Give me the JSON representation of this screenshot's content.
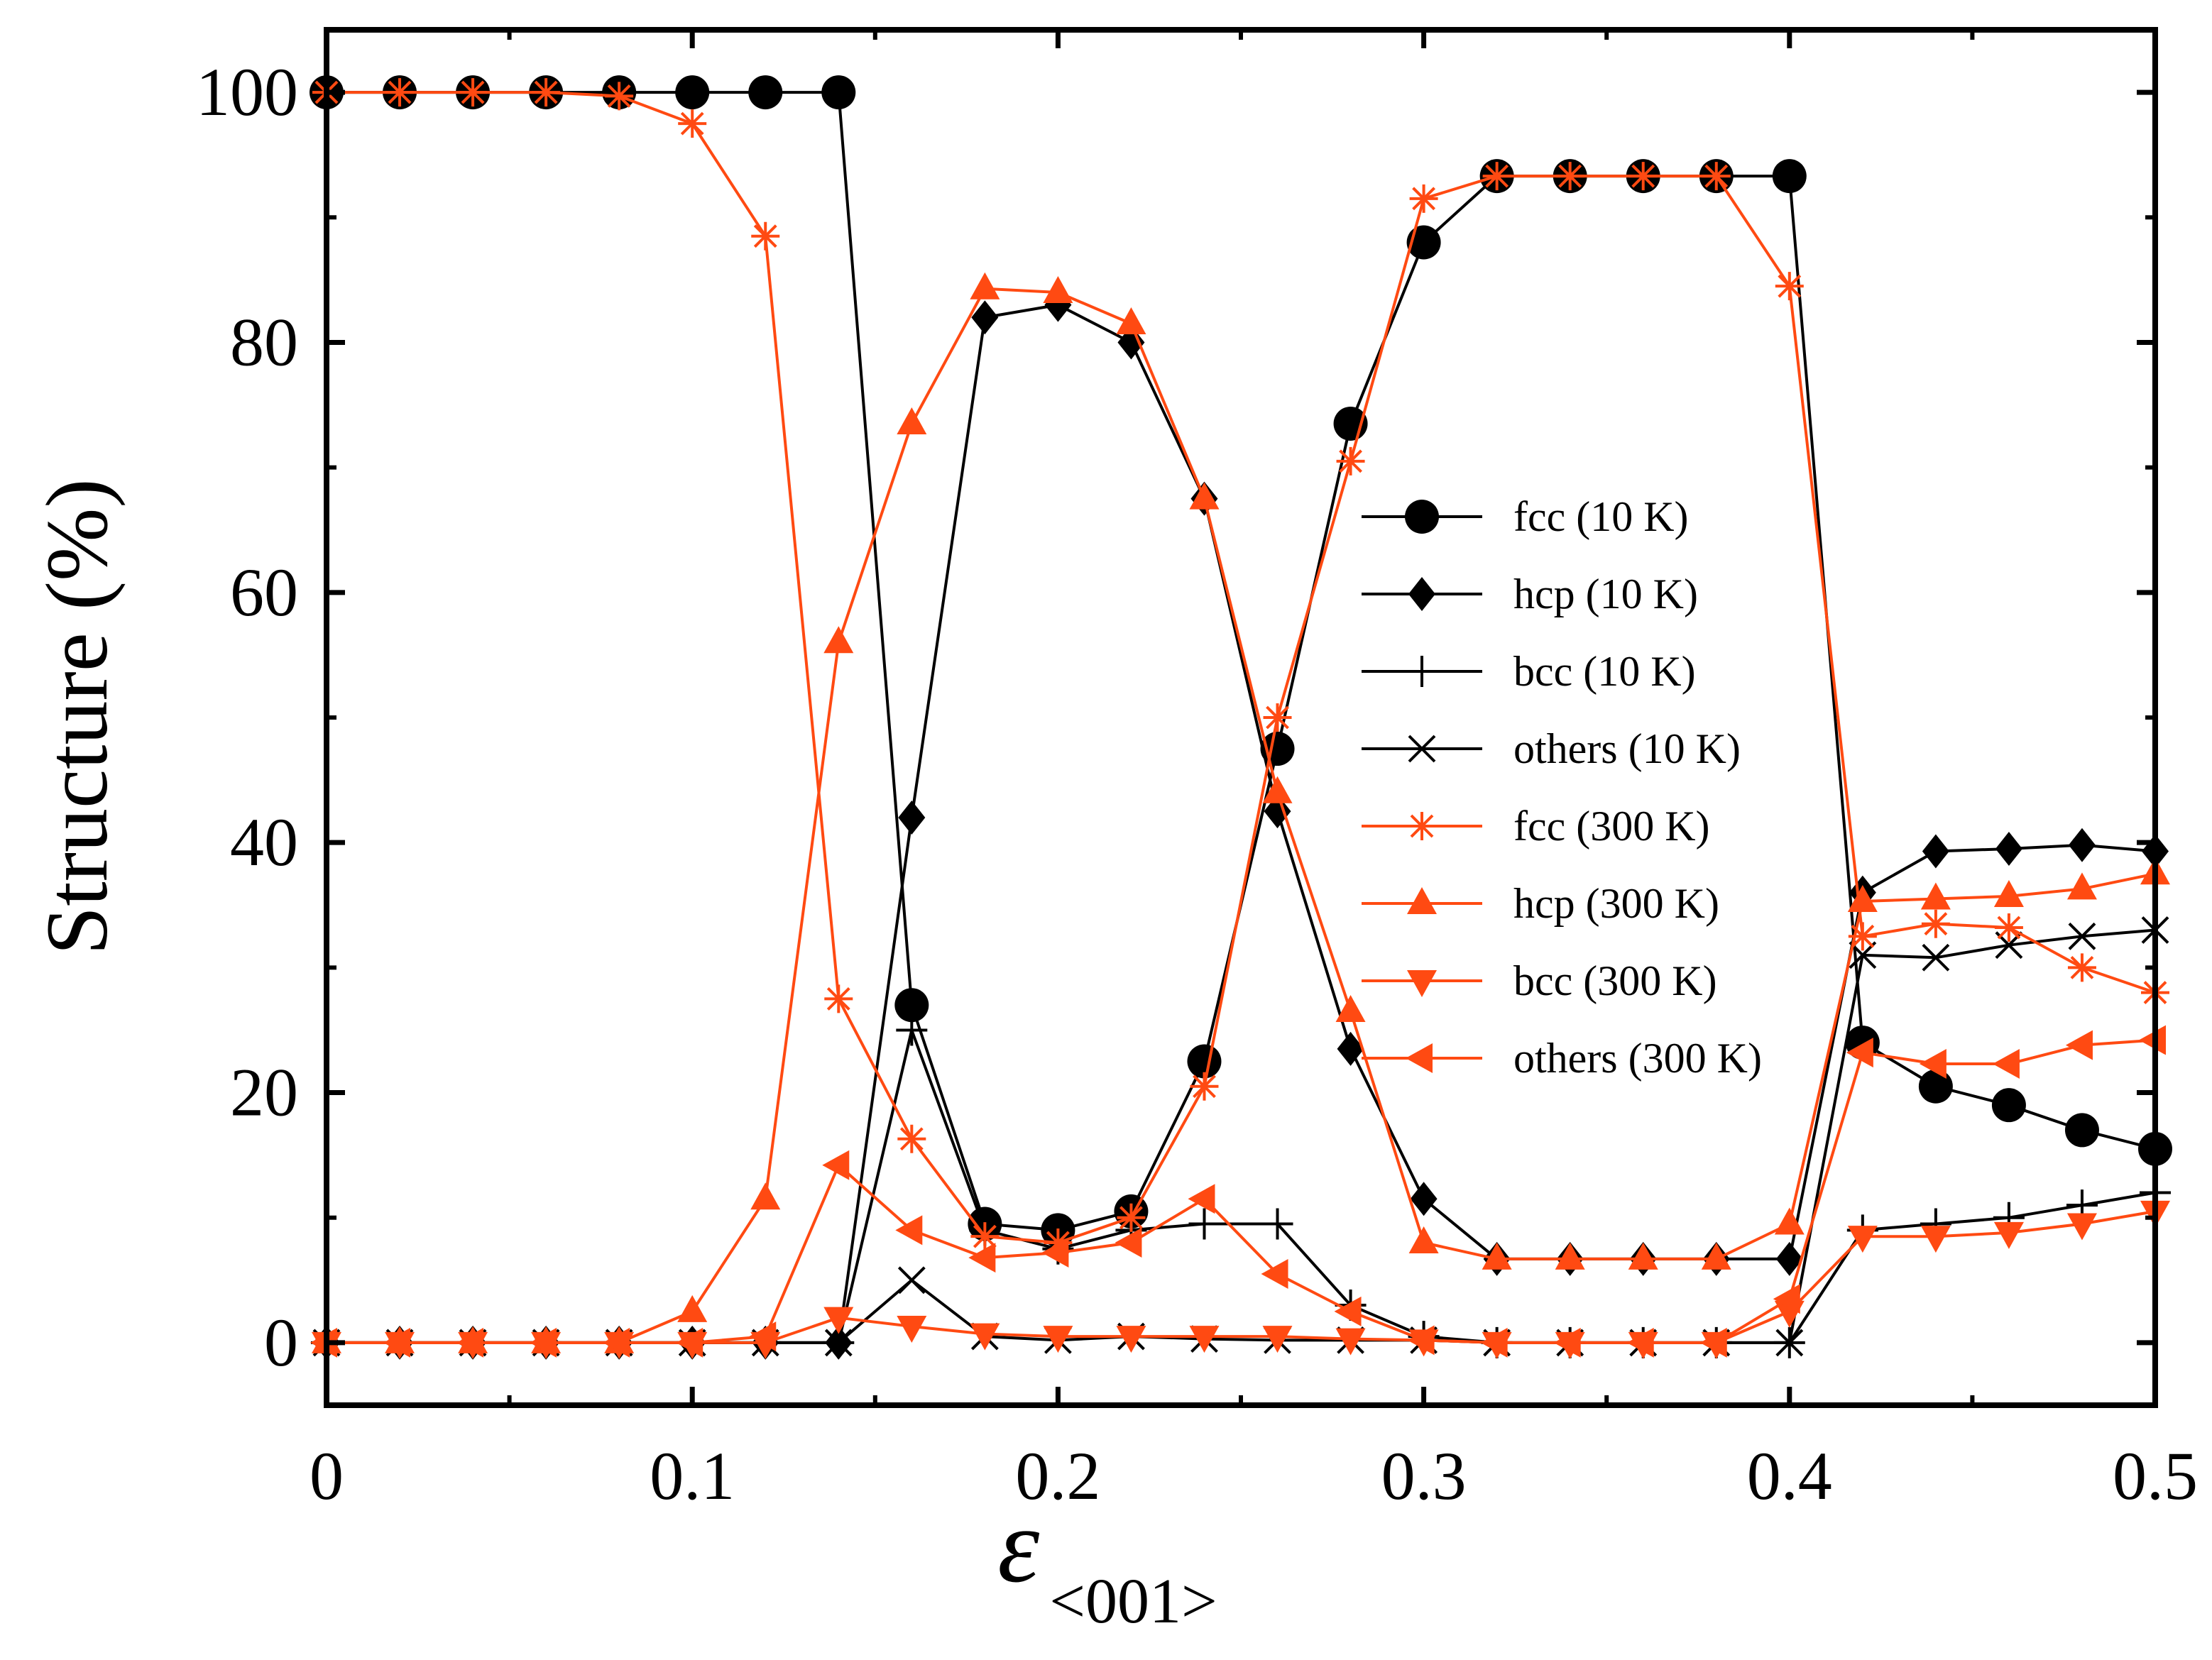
{
  "chart_data": {
    "type": "line",
    "title": "",
    "xlabel": "ε",
    "xlabel_subscript": "<001>",
    "ylabel": "Structure (%)",
    "xlim": [
      0,
      0.5
    ],
    "ylim": [
      -5,
      105
    ],
    "x_ticks": [
      0,
      0.1,
      0.2,
      0.3,
      0.4,
      0.5
    ],
    "x_tick_labels": [
      "0",
      "0.1",
      "0.2",
      "0.3",
      "0.4",
      "0.5"
    ],
    "y_ticks": [
      0,
      20,
      40,
      60,
      80,
      100
    ],
    "y_tick_labels": [
      "0",
      "20",
      "40",
      "60",
      "80",
      "100"
    ],
    "grid": false,
    "legend_position": "center-right",
    "x": [
      0,
      0.02,
      0.04,
      0.06,
      0.08,
      0.1,
      0.12,
      0.14,
      0.16,
      0.18,
      0.2,
      0.22,
      0.24,
      0.26,
      0.28,
      0.3,
      0.32,
      0.34,
      0.36,
      0.38,
      0.4,
      0.42,
      0.44,
      0.46,
      0.48,
      0.5
    ],
    "series": [
      {
        "name": "fcc (10 K)",
        "color": "#000000",
        "marker": "circle",
        "values": [
          100,
          100,
          100,
          100,
          100,
          100,
          100,
          100,
          27,
          9.5,
          9,
          10.5,
          22.5,
          47.5,
          73.5,
          88,
          93.3,
          93.3,
          93.3,
          93.3,
          93.3,
          24,
          20.5,
          19,
          17,
          15.5
        ]
      },
      {
        "name": "hcp (10 K)",
        "color": "#000000",
        "marker": "diamond",
        "values": [
          0,
          0,
          0,
          0,
          0,
          0,
          0,
          0,
          42,
          82,
          83,
          80,
          67.5,
          42.5,
          23.5,
          11.5,
          6.7,
          6.7,
          6.7,
          6.7,
          6.7,
          36,
          39.3,
          39.5,
          39.8,
          39.3
        ]
      },
      {
        "name": "bcc (10 K)",
        "color": "#000000",
        "marker": "plus",
        "values": [
          0,
          0,
          0,
          0,
          0,
          0,
          0,
          0,
          25,
          9,
          7.5,
          9,
          9.5,
          9.5,
          3,
          0.5,
          0,
          0,
          0,
          0,
          0,
          9,
          9.5,
          10,
          11,
          12
        ]
      },
      {
        "name": "others (10 K)",
        "color": "#000000",
        "marker": "x",
        "values": [
          0,
          0,
          0,
          0,
          0,
          0,
          0,
          0,
          5,
          0.5,
          0.2,
          0.5,
          0.3,
          0.2,
          0.2,
          0.2,
          0,
          0,
          0,
          0,
          0,
          31,
          30.8,
          31.8,
          32.5,
          33
        ]
      },
      {
        "name": "fcc (300 K)",
        "color": "#ff4a12",
        "marker": "asterisk",
        "values": [
          100,
          100,
          100,
          100,
          99.7,
          97.5,
          88.5,
          27.5,
          16.3,
          8.5,
          8,
          10,
          20.5,
          50,
          70.5,
          91.5,
          93.3,
          93.3,
          93.3,
          93.3,
          84.5,
          32.5,
          33.5,
          33.2,
          30,
          28
        ]
      },
      {
        "name": "hcp (300 K)",
        "color": "#ff4a12",
        "marker": "triangle-up",
        "values": [
          0,
          0,
          0,
          0,
          0,
          2.5,
          11.5,
          56,
          73.5,
          84.3,
          84,
          81.5,
          67.5,
          44,
          26.5,
          8,
          6.7,
          6.7,
          6.7,
          6.7,
          9.5,
          35.3,
          35.5,
          35.7,
          36.3,
          37.5
        ]
      },
      {
        "name": "bcc (300 K)",
        "color": "#ff4a12",
        "marker": "triangle-down",
        "values": [
          0,
          0,
          0,
          0,
          0,
          0,
          0,
          2,
          1.3,
          0.7,
          0.5,
          0.5,
          0.5,
          0.5,
          0.3,
          0.2,
          0,
          0,
          0,
          0,
          2.5,
          8.5,
          8.5,
          8.8,
          9.5,
          10.5
        ]
      },
      {
        "name": "others (300 K)",
        "color": "#ff4a12",
        "marker": "triangle-left",
        "values": [
          0,
          0,
          0,
          0,
          0,
          0,
          0.5,
          14.2,
          9,
          6.8,
          7.2,
          8,
          11.5,
          5.5,
          2.5,
          0.2,
          0,
          0,
          0,
          0,
          3.5,
          23.2,
          22.3,
          22.3,
          23.8,
          24.2
        ]
      }
    ]
  }
}
